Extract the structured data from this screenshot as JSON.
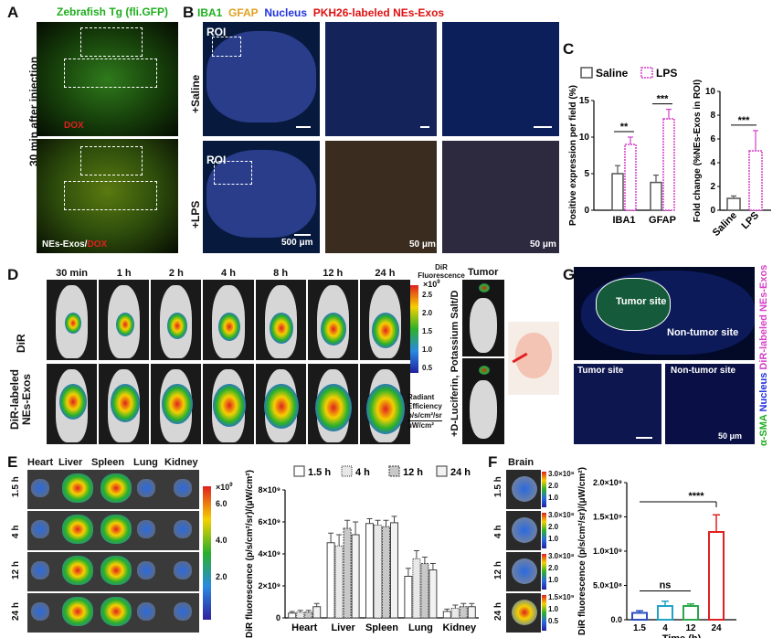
{
  "panels": {
    "A": "A",
    "B": "B",
    "C": "C",
    "D": "D",
    "E": "E",
    "F": "F",
    "G": "G"
  },
  "panelA": {
    "title": "Zebrafish Tg (fli.GFP)",
    "side": "30 min after injection",
    "top_label": "DOX",
    "bottom_label_a": "NEs-Exos/",
    "bottom_label_b": "DOX"
  },
  "panelB": {
    "legend": [
      {
        "text": "IBA1",
        "color": "#1fae1f"
      },
      {
        "text": "GFAP",
        "color": "#e0a020"
      },
      {
        "text": "Nucleus",
        "color": "#2233dd"
      },
      {
        "text": "PKH26-labeled NEs-Exos",
        "color": "#e01010"
      }
    ],
    "row1": "+Saline",
    "row2": "+LPS",
    "roi": "ROI",
    "scale1": "500 μm",
    "scale2": "50 μm",
    "scale3": "50 μm"
  },
  "panelD": {
    "times": [
      "30 min",
      "1 h",
      "2 h",
      "4 h",
      "8 h",
      "12 h",
      "24 h"
    ],
    "row1": "DiR",
    "row2": "DiR-labeled NEs-Exos",
    "tumor": "Tumor",
    "side": "+D-Luciferin, Potassium Salt/D",
    "cb_title1": "DiR",
    "cb_title2": "Fluorescence",
    "cb_mult": "×10",
    "cb_exp": "9",
    "cb_ticks": [
      "2.5",
      "2.0",
      "1.5",
      "1.0",
      "0.5"
    ],
    "cb_unit": [
      "Radiant",
      "Efficiency",
      "p/s/cm²/sr",
      "μW/cm²"
    ]
  },
  "panelG": {
    "tumor": "Tumor site",
    "non": "Non-tumor site",
    "small1": "Tumor site",
    "small2": "Non-tumor site",
    "side1": "α-SMA",
    "side2": "Nucleus",
    "side3": "DiR-labeled NEs-Exos",
    "scale": "50 μm"
  },
  "panelE": {
    "organs": [
      "Heart",
      "Liver",
      "Spleen",
      "Lung",
      "Kidney"
    ],
    "times": [
      "1.5 h",
      "4 h",
      "12 h",
      "24 h"
    ],
    "cb_mult": "×10",
    "cb_exp": "9",
    "cb_ticks": [
      "6.0",
      "4.0",
      "2.0"
    ]
  },
  "panelF": {
    "title": "Brain",
    "times": [
      "1.5 h",
      "4 h",
      "12 h",
      "24 h"
    ],
    "cb_ticks": [
      [
        "3.0×10⁸",
        "2.0",
        "1.0"
      ],
      [
        "3.0×10⁸",
        "2.0",
        "1.0"
      ],
      [
        "3.0×10⁸",
        "2.0",
        "1.0"
      ],
      [
        "1.5×10⁹",
        "1.0",
        "0.5"
      ]
    ]
  },
  "colors": {
    "saline": "#555555",
    "lps": "#d63fc9",
    "red": "#e02020",
    "blue": "#2a4fbf",
    "green": "#2aa84a"
  },
  "chart_data": [
    {
      "id": "C-left",
      "type": "bar",
      "ylabel": "Positive expression per field (%)",
      "ylim": [
        0,
        15
      ],
      "yticks": [
        0,
        5,
        10,
        15
      ],
      "categories": [
        "IBA1",
        "GFAP"
      ],
      "series": [
        {
          "name": "Saline",
          "values": [
            5.0,
            3.8
          ],
          "errors": [
            1.1,
            1.0
          ]
        },
        {
          "name": "LPS",
          "values": [
            9.0,
            12.5
          ],
          "errors": [
            1.0,
            1.3
          ]
        }
      ],
      "annotations": [
        "**",
        "***"
      ]
    },
    {
      "id": "C-right",
      "type": "bar",
      "ylabel": "Fold change (%NEs-Exos in ROI)",
      "ylim": [
        0,
        10
      ],
      "yticks": [
        0,
        2,
        4,
        6,
        8,
        10
      ],
      "categories": [
        "Saline",
        "LPS"
      ],
      "values": [
        1.0,
        5.0
      ],
      "errors": [
        0.2,
        1.7
      ],
      "annotations": [
        "***"
      ]
    },
    {
      "id": "E",
      "type": "bar",
      "ylabel": "DiR fluorescence (p/s/cm²/sr)/(μW/cm²)",
      "ylim": [
        0,
        8000000000.0
      ],
      "ytick_labels": [
        "0",
        "2×10⁹",
        "4×10⁹",
        "6×10⁹",
        "8×10⁹"
      ],
      "categories": [
        "Heart",
        "Liver",
        "Spleen",
        "Lung",
        "Kidney"
      ],
      "series": [
        {
          "name": "1.5 h",
          "values": [
            300000000.0,
            4700000000.0,
            5900000000.0,
            2600000000.0,
            400000000.0
          ],
          "errors": [
            100000000.0,
            600000000.0,
            300000000.0,
            500000000.0,
            150000000.0
          ]
        },
        {
          "name": "4 h",
          "values": [
            350000000.0,
            4500000000.0,
            5800000000.0,
            3700000000.0,
            600000000.0
          ],
          "errors": [
            120000000.0,
            700000000.0,
            300000000.0,
            500000000.0,
            200000000.0
          ]
        },
        {
          "name": "12 h",
          "values": [
            350000000.0,
            5600000000.0,
            5700000000.0,
            3400000000.0,
            700000000.0
          ],
          "errors": [
            120000000.0,
            500000000.0,
            400000000.0,
            400000000.0,
            200000000.0
          ]
        },
        {
          "name": "24 h",
          "values": [
            700000000.0,
            5200000000.0,
            5950000000.0,
            3000000000.0,
            700000000.0
          ],
          "errors": [
            200000000.0,
            800000000.0,
            400000000.0,
            400000000.0,
            200000000.0
          ]
        }
      ]
    },
    {
      "id": "F",
      "type": "bar",
      "xlabel": "Time (h)",
      "ylabel": "DiR fluorescence (p/s/cm²/sr)/(μW/cm²)",
      "ylim": [
        0,
        2000000000.0
      ],
      "ytick_labels": [
        "0.0",
        "5.0×10⁸",
        "1.0×10⁹",
        "1.5×10⁹",
        "2.0×10⁹"
      ],
      "categories": [
        "1.5",
        "4",
        "12",
        "24"
      ],
      "values": [
        100000000.0,
        200000000.0,
        200000000.0,
        1280000000.0
      ],
      "errors": [
        30000000.0,
        70000000.0,
        30000000.0,
        250000000.0
      ],
      "bar_colors": [
        "#2a4fbf",
        "#1fa3c7",
        "#2aa84a",
        "#e02020"
      ],
      "annotations": [
        "ns",
        "****"
      ]
    }
  ]
}
